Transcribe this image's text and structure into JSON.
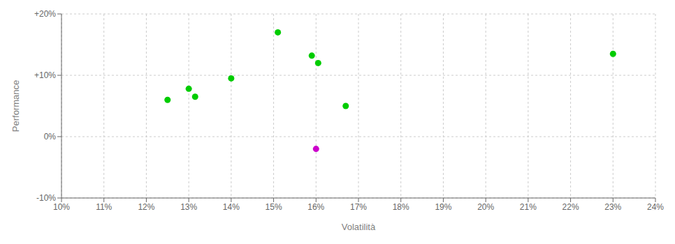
{
  "chart_data": {
    "type": "scatter",
    "xlabel": "Volatilità",
    "ylabel": "Performance",
    "x": [
      12.5,
      13.0,
      13.15,
      14.0,
      15.1,
      15.9,
      16.05,
      16.7,
      23.0,
      16.0
    ],
    "values": [
      6.0,
      7.8,
      6.5,
      9.5,
      17.0,
      13.2,
      12.0,
      5.0,
      13.5,
      -2.0
    ],
    "colors": [
      "#00cc00",
      "#00cc00",
      "#00cc00",
      "#00cc00",
      "#00cc00",
      "#00cc00",
      "#00cc00",
      "#00cc00",
      "#00cc00",
      "#cc00cc"
    ],
    "xlim": [
      10,
      24
    ],
    "ylim": [
      -10,
      20
    ],
    "xticks": [
      {
        "value": 10,
        "label": "10%"
      },
      {
        "value": 11,
        "label": "11%"
      },
      {
        "value": 12,
        "label": "12%"
      },
      {
        "value": 13,
        "label": "13%"
      },
      {
        "value": 14,
        "label": "14%"
      },
      {
        "value": 15,
        "label": "15%"
      },
      {
        "value": 16,
        "label": "16%"
      },
      {
        "value": 17,
        "label": "17%"
      },
      {
        "value": 18,
        "label": "18%"
      },
      {
        "value": 19,
        "label": "19%"
      },
      {
        "value": 20,
        "label": "20%"
      },
      {
        "value": 21,
        "label": "21%"
      },
      {
        "value": 22,
        "label": "22%"
      },
      {
        "value": 23,
        "label": "23%"
      },
      {
        "value": 24,
        "label": "24%"
      }
    ],
    "yticks": [
      {
        "value": -10,
        "label": "-10%"
      },
      {
        "value": 0,
        "label": "0%"
      },
      {
        "value": 10,
        "label": "+10%"
      },
      {
        "value": 20,
        "label": "+20%"
      }
    ],
    "grid": true
  }
}
